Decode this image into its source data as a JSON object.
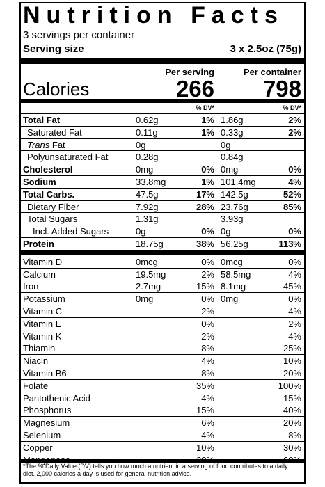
{
  "label": {
    "title": "Nutrition Facts",
    "servings_per_container": "3 servings per container",
    "serving_size_label": "Serving size",
    "serving_size_value": "3 x 2.5oz (75g)",
    "per_serving_label": "Per serving",
    "per_container_label": "Per container",
    "calories_label": "Calories",
    "calories_per_serving": "266",
    "calories_per_container": "798",
    "dv_header": "% DV*",
    "macros": [
      {
        "name": "Total Fat",
        "style": "bold",
        "serving": "0.62g",
        "serving_dv": "1%",
        "container": "1.86g",
        "container_dv": "2%"
      },
      {
        "name": "Saturated Fat",
        "style": "indent",
        "serving": "0.11g",
        "serving_dv": "1%",
        "container": "0.33g",
        "container_dv": "2%"
      },
      {
        "name_italic": "Trans",
        "name_rest": " Fat",
        "style": "indent-trans",
        "serving": "0g",
        "serving_dv": "",
        "container": "0g",
        "container_dv": ""
      },
      {
        "name": "Polyunsaturated Fat",
        "style": "indent",
        "serving": "0.28g",
        "serving_dv": "",
        "container": "0.84g",
        "container_dv": ""
      },
      {
        "name": "Cholesterol",
        "style": "bold",
        "serving": "0mg",
        "serving_dv": "0%",
        "container": "0mg",
        "container_dv": "0%"
      },
      {
        "name": "Sodium",
        "style": "bold",
        "serving": "33.8mg",
        "serving_dv": "1%",
        "container": "101.4mg",
        "container_dv": "4%"
      },
      {
        "name": "Total Carbs.",
        "style": "bold",
        "serving": "47.5g",
        "serving_dv": "17%",
        "container": "142.5g",
        "container_dv": "52%"
      },
      {
        "name": "Dietary Fiber",
        "style": "indent",
        "serving": "7.92g",
        "serving_dv": "28%",
        "container": "23.76g",
        "container_dv": "85%"
      },
      {
        "name": "Total Sugars",
        "style": "indent",
        "serving": "1.31g",
        "serving_dv": "",
        "container": "3.93g",
        "container_dv": ""
      },
      {
        "name": "Incl. Added Sugars",
        "style": "indent2",
        "serving": "0g",
        "serving_dv": "0%",
        "container": "0g",
        "container_dv": "0%"
      },
      {
        "name": "Protein",
        "style": "bold",
        "serving": "18.75g",
        "serving_dv": "38%",
        "container": "56.25g",
        "container_dv": "113%"
      }
    ],
    "micros": [
      {
        "name": "Vitamin D",
        "serving": "0mcg",
        "serving_dv": "0%",
        "container": "0mcg",
        "container_dv": "0%"
      },
      {
        "name": "Calcium",
        "serving": "19.5mg",
        "serving_dv": "2%",
        "container": "58.5mg",
        "container_dv": "4%"
      },
      {
        "name": "Iron",
        "serving": "2.7mg",
        "serving_dv": "15%",
        "container": "8.1mg",
        "container_dv": "45%"
      },
      {
        "name": "Potassium",
        "serving": "0mg",
        "serving_dv": "0%",
        "container": "0mg",
        "container_dv": "0%"
      },
      {
        "name": "Vitamin C",
        "serving": "",
        "serving_dv": "2%",
        "container": "",
        "container_dv": "4%"
      },
      {
        "name": "Vitamin E",
        "serving": "",
        "serving_dv": "0%",
        "container": "",
        "container_dv": "2%"
      },
      {
        "name": "Vitamin K",
        "serving": "",
        "serving_dv": "2%",
        "container": "",
        "container_dv": "4%"
      },
      {
        "name": "Thiamin",
        "serving": "",
        "serving_dv": "8%",
        "container": "",
        "container_dv": "25%"
      },
      {
        "name": "Niacin",
        "serving": "",
        "serving_dv": "4%",
        "container": "",
        "container_dv": "10%"
      },
      {
        "name": "Vitamin B6",
        "serving": "",
        "serving_dv": "8%",
        "container": "",
        "container_dv": "20%"
      },
      {
        "name": "Folate",
        "serving": "",
        "serving_dv": "35%",
        "container": "",
        "container_dv": "100%"
      },
      {
        "name": "Pantothenic Acid",
        "serving": "",
        "serving_dv": "4%",
        "container": "",
        "container_dv": "15%"
      },
      {
        "name": "Phosphorus",
        "serving": "",
        "serving_dv": "15%",
        "container": "",
        "container_dv": "40%"
      },
      {
        "name": "Magnesium",
        "serving": "",
        "serving_dv": "6%",
        "container": "",
        "container_dv": "20%"
      },
      {
        "name": "Selenium",
        "serving": "",
        "serving_dv": "4%",
        "container": "",
        "container_dv": "8%"
      },
      {
        "name": "Copper",
        "serving": "",
        "serving_dv": "10%",
        "container": "",
        "container_dv": "30%"
      },
      {
        "name": "Manganese",
        "serving": "",
        "serving_dv": "20%",
        "container": "",
        "container_dv": "60%"
      }
    ],
    "footnote": "*The % Daily Value (DV) tells you how much a nutrient in a serving of food contributes to a daily diet. 2,000 calories a day is used for general nutrition advice."
  }
}
